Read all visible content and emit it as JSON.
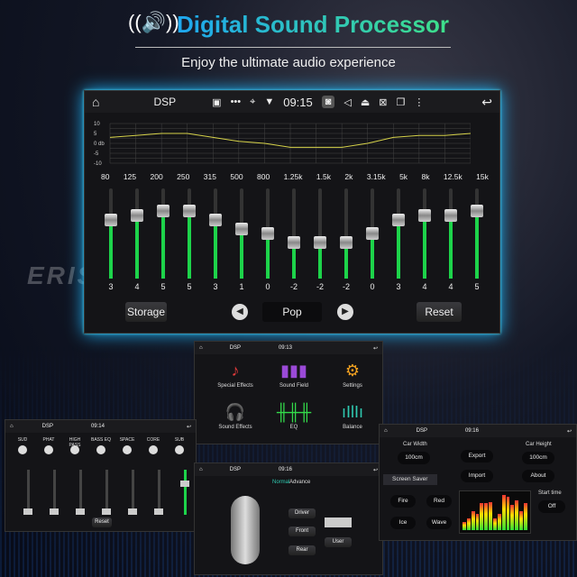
{
  "header": {
    "title": "Digital Sound Processor",
    "subtitle": "Enjoy the ultimate audio experience",
    "icon": "speaker-waves-icon"
  },
  "watermark": "ERISIN",
  "main": {
    "status": {
      "home": "home-icon",
      "title": "DSP",
      "time": "09:15",
      "icons": [
        "image-icon",
        "more-icon",
        "location-icon",
        "wifi-icon",
        "camera-icon",
        "volume-icon",
        "eject-icon",
        "screen-icon",
        "window-icon",
        "menu-icon",
        "back-icon"
      ]
    },
    "graph": {
      "y_labels": [
        "10",
        "5",
        "0 db",
        "-5",
        "-10"
      ],
      "curve_color": "#d6d24a"
    },
    "bands": [
      "80",
      "125",
      "200",
      "250",
      "315",
      "500",
      "800",
      "1.25k",
      "1.5k",
      "2k",
      "3.15k",
      "5k",
      "8k",
      "12.5k",
      "15k"
    ],
    "values": [
      3,
      4,
      5,
      5,
      3,
      1,
      0,
      -2,
      -2,
      -2,
      0,
      3,
      4,
      4,
      5
    ],
    "range": [
      -10,
      10
    ],
    "storage": "Storage",
    "preset": "Pop",
    "reset": "Reset",
    "prev": "◀",
    "next": "▶"
  },
  "menu_screen": {
    "title": "DSP",
    "time": "09:13",
    "items": [
      {
        "label": "Special Effects",
        "icon": "music-note-icon",
        "color": "#e23b3b"
      },
      {
        "label": "Sound Field",
        "icon": "sound-field-icon",
        "color": "#9b4ad8"
      },
      {
        "label": "Settings",
        "icon": "gear-icon",
        "color": "#f0a020"
      },
      {
        "label": "Sound Effects",
        "icon": "headphones-icon",
        "color": "#2f8ff0"
      },
      {
        "label": "EQ",
        "icon": "equalizer-icon",
        "color": "#33d94a"
      },
      {
        "label": "Balance",
        "icon": "waveform-icon",
        "color": "#2fc9b0"
      }
    ]
  },
  "effects_screen": {
    "title": "DSP",
    "time": "09:14",
    "channels": [
      "SUD",
      "PHAT",
      "HIGH PASS",
      "BASS EQ",
      "SPACE",
      "CORE",
      "SUB"
    ],
    "reset": "Reset"
  },
  "field_screen": {
    "title": "DSP",
    "time": "09:16",
    "tabs": [
      "Normal",
      "Advance"
    ],
    "buttons": [
      "Driver",
      "Front",
      "Rear",
      "User"
    ]
  },
  "settings_screen": {
    "title": "DSP",
    "time": "09:16",
    "car_width_label": "Car Width",
    "car_width": "100cm",
    "car_height_label": "Car Height",
    "car_height": "100cm",
    "export": "Export",
    "import": "Import",
    "about": "About",
    "screen_saver": "Screen Saver",
    "savers": [
      "Fire",
      "Red",
      "Ice",
      "Wave"
    ],
    "start_time_label": "Start time",
    "start_time": "Off"
  }
}
